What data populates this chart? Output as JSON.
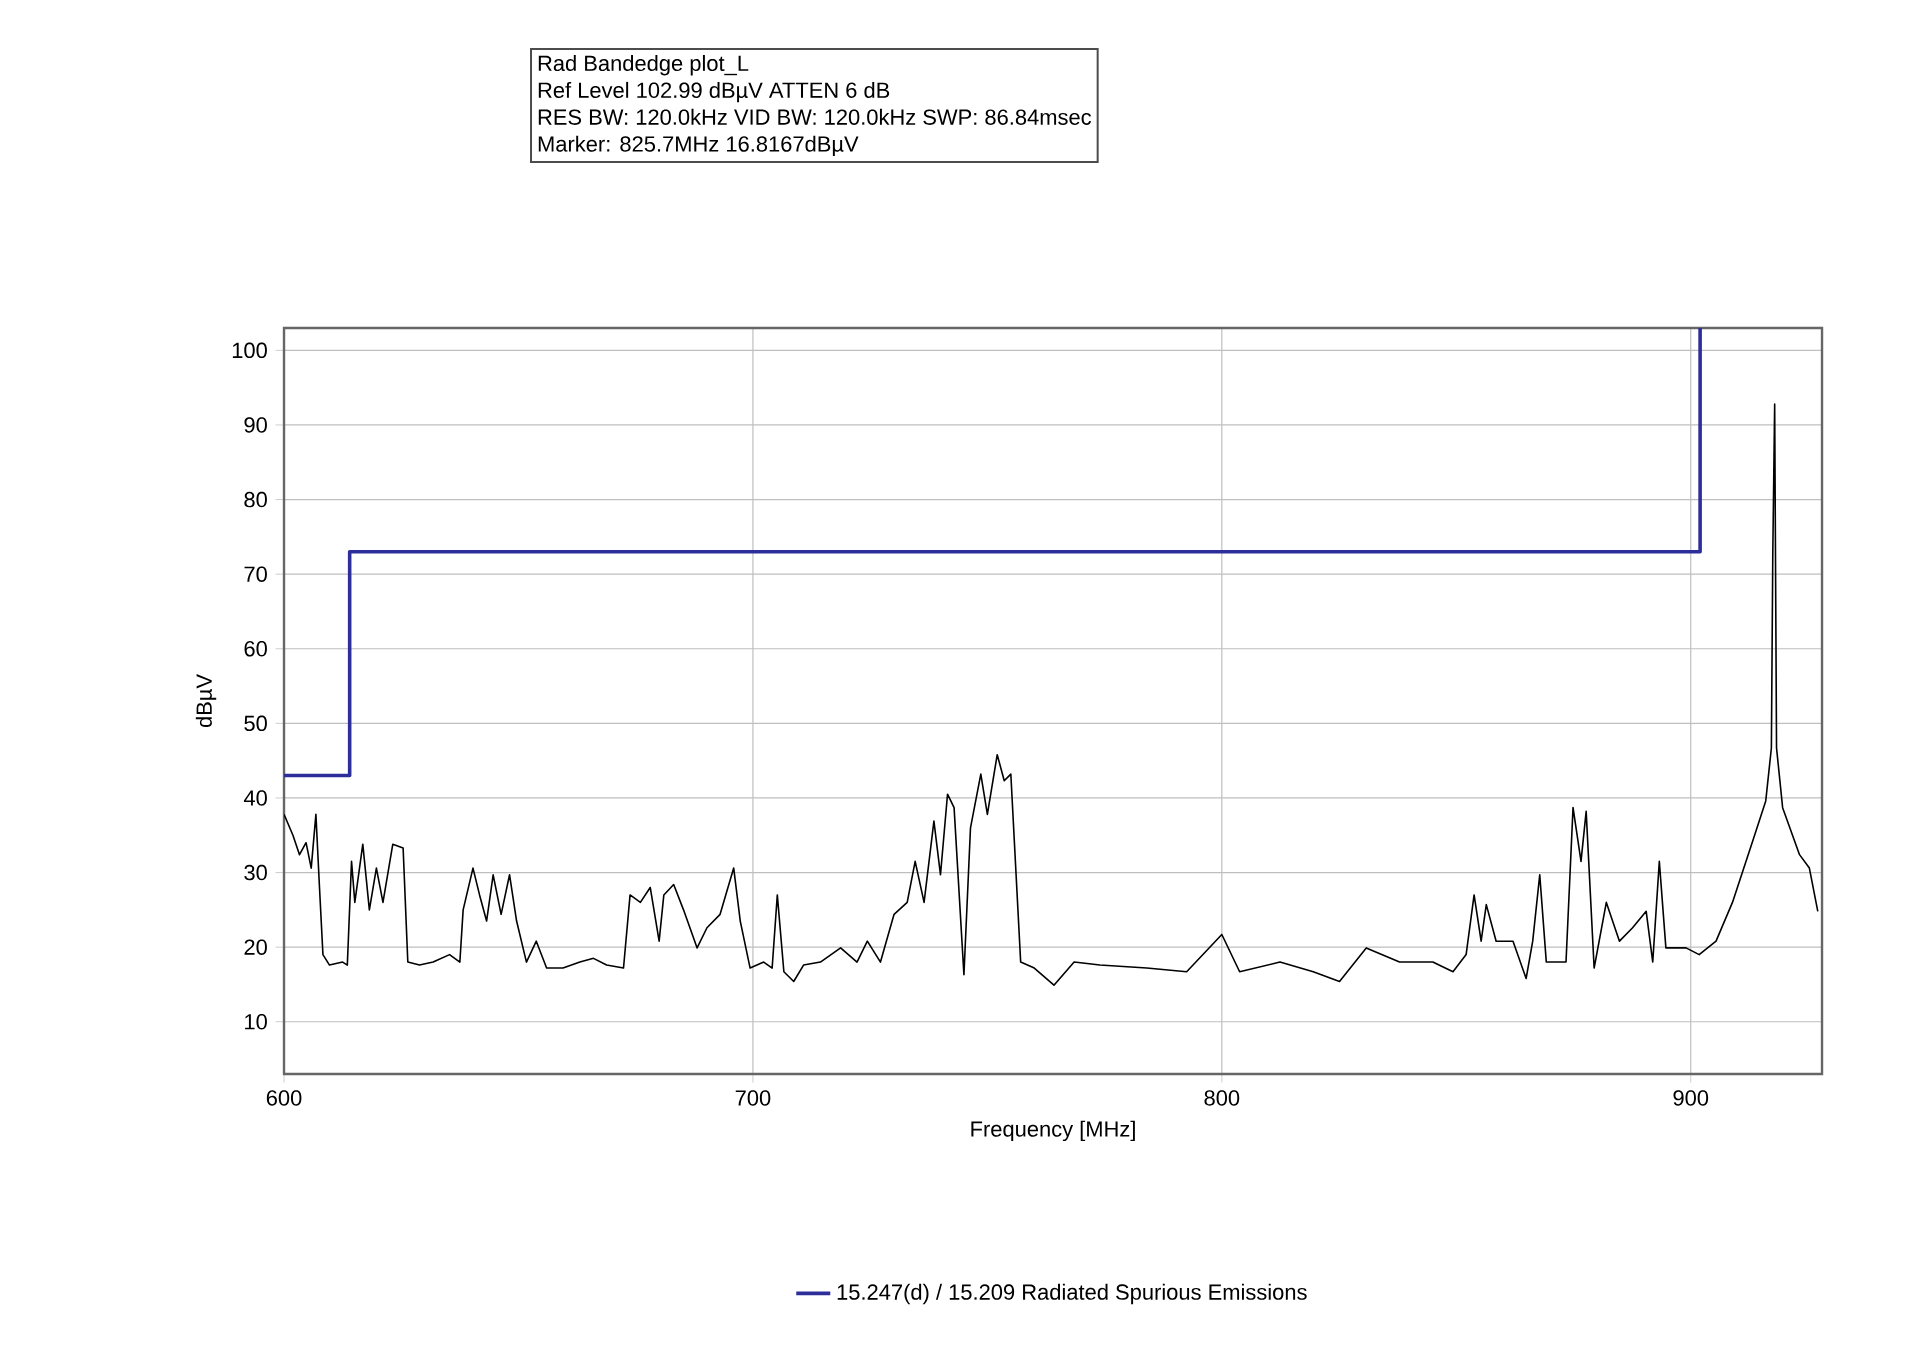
{
  "chart_data": {
    "type": "line",
    "title": "Rad Bandedge plot_L",
    "annotations": [
      "Ref Level 102.99 dBµV    ATTEN 6 dB",
      "RES BW: 120.0kHz  VID BW: 120.0kHz  SWP: 86.84msec",
      "Marker: 825.7MHz  16.8167dBµV"
    ],
    "xlabel": "Frequency [MHz]",
    "ylabel": "dBµV",
    "xlim": [
      600,
      928
    ],
    "ylim": [
      3,
      103
    ],
    "xticks": [
      600,
      700,
      800,
      900
    ],
    "yticks": [
      10,
      20,
      30,
      40,
      50,
      60,
      70,
      80,
      90,
      100
    ],
    "grid": true,
    "legend": "bottom",
    "marker": "none",
    "line_style": "solid",
    "series": [
      {
        "name": "15.247(d) / 15.209 Radiated Spurious Emissions",
        "color": "#2e2e9a",
        "type": "step",
        "x": [
          600,
          614,
          614,
          902,
          902
        ],
        "values": [
          43,
          43,
          73,
          73,
          103
        ]
      },
      {
        "color": "#000000",
        "x": [
          600,
          601.9,
          603.3,
          604.7,
          605.8,
          606.8,
          607.5,
          608.3,
          609.7,
          612.5,
          613.5,
          614.4,
          615.1,
          616.8,
          618.2,
          619.7,
          621.1,
          623.2,
          625.4,
          626.4,
          628.9,
          631.8,
          635.3,
          637.5,
          638.2,
          640.3,
          641.7,
          643.2,
          644.6,
          646.3,
          648.1,
          649.6,
          651.7,
          653.8,
          656,
          659.5,
          663.1,
          666,
          668.8,
          672.4,
          673.8,
          676,
          678.1,
          680,
          681,
          683.1,
          685.2,
          688.1,
          690.2,
          693,
          695.9,
          697.3,
          699.4,
          702.3,
          704.1,
          705.2,
          706.6,
          708.7,
          710.8,
          714.4,
          718.7,
          722.2,
          724.4,
          727.2,
          730.1,
          732.9,
          734.6,
          736.5,
          738.6,
          740,
          741.5,
          742.9,
          745,
          746.4,
          748.6,
          750,
          752.1,
          753.6,
          755,
          757.1,
          760,
          764.2,
          768.5,
          774,
          784,
          792.5,
          800,
          803.8,
          812.4,
          819.5,
          825.1,
          830.8,
          837.9,
          845,
          849.3,
          852.1,
          853.8,
          855.3,
          856.4,
          858.5,
          862.1,
          864.9,
          866.3,
          867.8,
          869.2,
          873.4,
          874.9,
          876.6,
          877.7,
          879.4,
          882,
          884.8,
          887.6,
          890.5,
          891.9,
          893.3,
          894.7,
          899,
          901.8,
          905.4,
          908.9,
          913.2,
          916,
          917.2,
          917.5,
          917.9,
          918.3,
          919.6,
          923.2,
          925.3,
          927.1
        ],
        "values": [
          37.8,
          35,
          32.4,
          34,
          30.6,
          37.8,
          28.8,
          19,
          17.6,
          18,
          17.6,
          31.5,
          26,
          33.8,
          25,
          30.6,
          26,
          33.8,
          33.3,
          18,
          17.6,
          18,
          19,
          18,
          25,
          30.6,
          27,
          23.5,
          29.7,
          24.4,
          29.7,
          23.5,
          18,
          20.8,
          17.2,
          17.2,
          18,
          18.5,
          17.6,
          17.2,
          27,
          26,
          28,
          20.8,
          27,
          28.4,
          25,
          19.9,
          22.6,
          24.4,
          30.6,
          23.5,
          17.2,
          18,
          17.2,
          27,
          16.7,
          15.4,
          17.6,
          18,
          19.9,
          18,
          20.8,
          18,
          24.4,
          26,
          31.5,
          26,
          36.9,
          29.7,
          40.5,
          38.7,
          16.3,
          36,
          43.2,
          37.8,
          45.8,
          42.3,
          43.2,
          18,
          17.2,
          14.9,
          18,
          17.6,
          17.2,
          16.7,
          21.7,
          16.7,
          18,
          16.7,
          15.4,
          19.9,
          18,
          18,
          16.7,
          19,
          27,
          20.8,
          25.7,
          20.8,
          20.8,
          15.8,
          20.8,
          29.7,
          18,
          18,
          38.7,
          31.5,
          38.2,
          17.2,
          26,
          20.8,
          22.6,
          24.8,
          18,
          31.5,
          19.9,
          19.9,
          19,
          20.8,
          26,
          34.2,
          39.6,
          46.7,
          72.7,
          92.8,
          46.7,
          38.7,
          32.4,
          30.6,
          24.8
        ]
      }
    ]
  }
}
